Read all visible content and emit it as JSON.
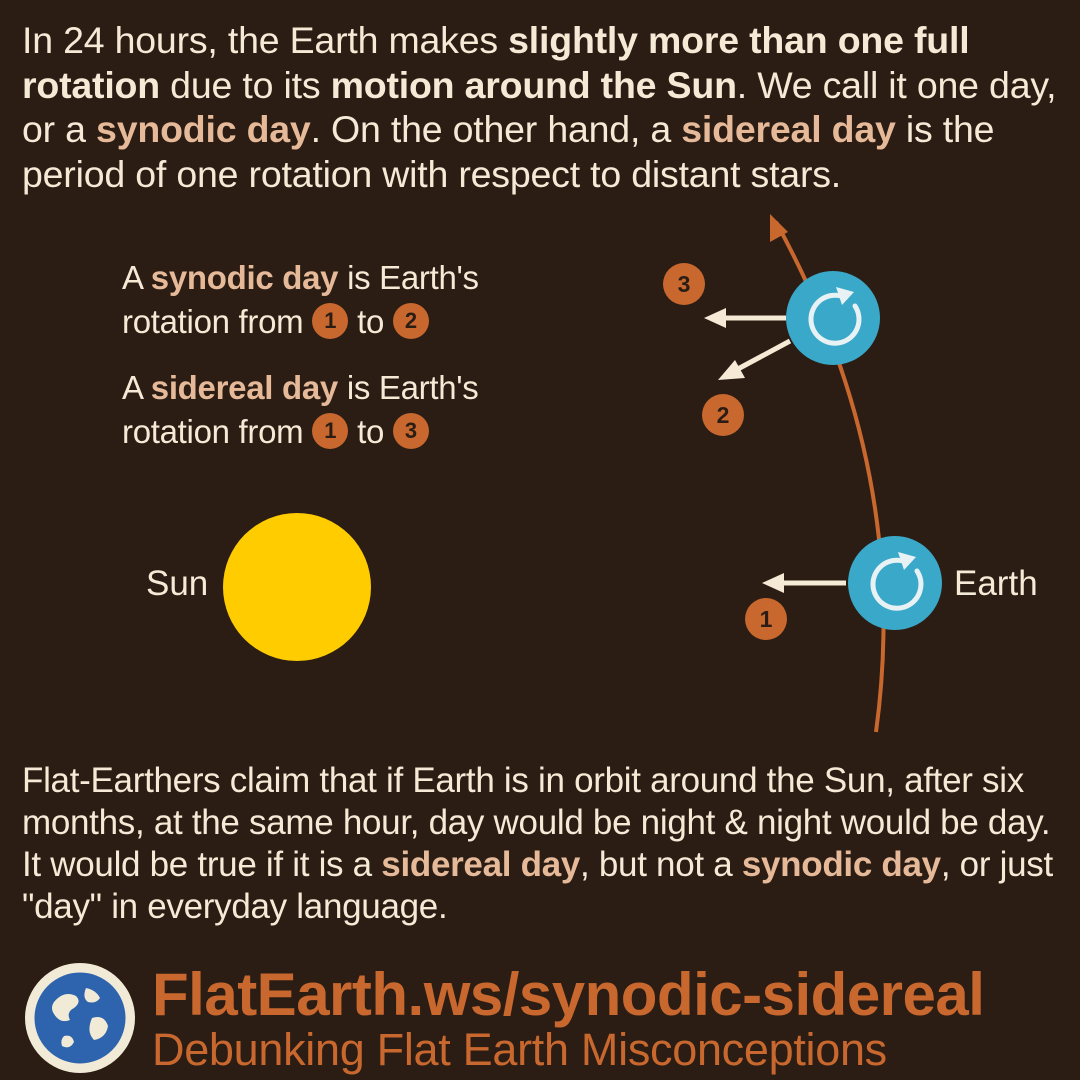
{
  "intro": {
    "p1": "In 24 hours, the Earth makes ",
    "b1": "slightly more than one full rotation",
    "p2": " due to its ",
    "b2": "motion around the Sun",
    "p3": ". We call it one day, or a ",
    "b3": "synodic day",
    "p4": ". On the other hand, a ",
    "b4": "sidereal day",
    "p5": " is the period of one rotation with respect to distant stars."
  },
  "definitions": {
    "synodic": {
      "prefix": "A ",
      "term": "synodic day",
      "line1_suffix": " is Earth's",
      "line2_text": "rotation from ",
      "from": "1",
      "connector": " to ",
      "to": "2"
    },
    "sidereal": {
      "prefix": "A ",
      "term": "sidereal day",
      "line1_suffix": " is Earth's",
      "line2_text": "rotation from ",
      "from": "1",
      "connector": " to ",
      "to": "3"
    }
  },
  "diagram": {
    "sun_label": "Sun",
    "earth_label": "Earth",
    "marker_1": "1",
    "marker_2": "2",
    "marker_3": "3",
    "colors": {
      "sun": "#ffcc00",
      "earth": "#3aa8c8",
      "orbit": "#c8682e",
      "arrow": "#f4ead6",
      "marker": "#c8682e"
    }
  },
  "claim": {
    "p1": "Flat-Earthers claim that if Earth is in orbit around the Sun, after six months, at the same hour, day would be night & night would be day. It would be true if it is a ",
    "b1": "sidereal day",
    "p2": ", but not a ",
    "b2": "synodic day",
    "p3": ", or just \"day\" in everyday language."
  },
  "footer": {
    "url": "FlatEarth.ws/synodic-sidereal",
    "tagline": "Debunking Flat Earth Misconceptions",
    "logo_icon": "globe-logo-icon"
  },
  "colors": {
    "background": "#2b1d14",
    "text": "#f4ead6",
    "highlight": "#e6b999",
    "accent": "#c8682e"
  }
}
